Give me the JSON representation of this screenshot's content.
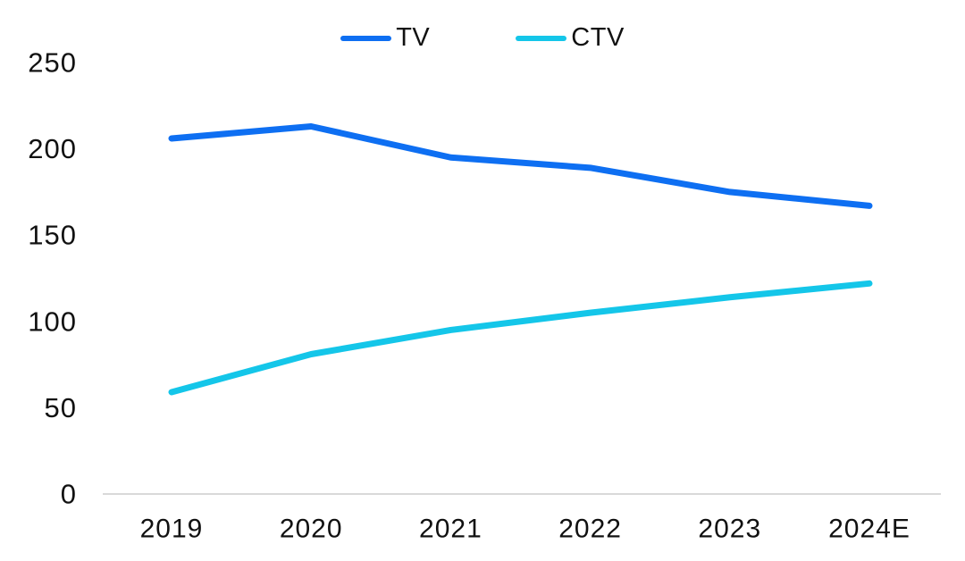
{
  "chart": {
    "background_color": "#ffffff",
    "text_color": "#111111",
    "axis_line_color": "#d9d9d9"
  },
  "legend": {
    "items": [
      {
        "label": "TV"
      },
      {
        "label": "CTV"
      }
    ]
  },
  "chart_data": {
    "type": "line",
    "title": "",
    "xlabel": "",
    "ylabel": "",
    "categories": [
      "2019",
      "2020",
      "2021",
      "2022",
      "2023",
      "2024E"
    ],
    "series": [
      {
        "name": "TV",
        "color": "#0e6ff2",
        "values": [
          206,
          213,
          195,
          189,
          175,
          167
        ]
      },
      {
        "name": "CTV",
        "color": "#14c6e9",
        "values": [
          59,
          81,
          95,
          105,
          114,
          122
        ]
      }
    ],
    "ylim": [
      0,
      250
    ],
    "yticks": [
      0,
      50,
      100,
      150,
      200,
      250
    ],
    "grid": false,
    "legend_position": "top-center"
  }
}
